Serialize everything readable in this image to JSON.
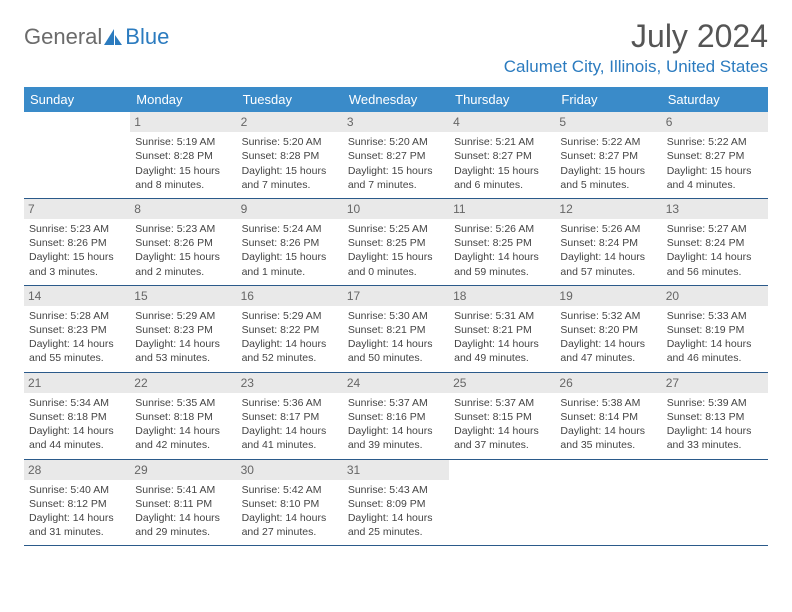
{
  "brand": {
    "part1": "General",
    "part2": "Blue"
  },
  "title": "July 2024",
  "location": "Calumet City, Illinois, United States",
  "weekdays": [
    "Sunday",
    "Monday",
    "Tuesday",
    "Wednesday",
    "Thursday",
    "Friday",
    "Saturday"
  ],
  "colors": {
    "header_bg": "#3a8bc9",
    "accent": "#2b7bbf",
    "daynum_bg": "#e9e9e9",
    "border": "#2b5a8a"
  },
  "first_weekday_index": 1,
  "days": [
    {
      "n": 1,
      "sunrise": "5:19 AM",
      "sunset": "8:28 PM",
      "daylight": "15 hours and 8 minutes."
    },
    {
      "n": 2,
      "sunrise": "5:20 AM",
      "sunset": "8:28 PM",
      "daylight": "15 hours and 7 minutes."
    },
    {
      "n": 3,
      "sunrise": "5:20 AM",
      "sunset": "8:27 PM",
      "daylight": "15 hours and 7 minutes."
    },
    {
      "n": 4,
      "sunrise": "5:21 AM",
      "sunset": "8:27 PM",
      "daylight": "15 hours and 6 minutes."
    },
    {
      "n": 5,
      "sunrise": "5:22 AM",
      "sunset": "8:27 PM",
      "daylight": "15 hours and 5 minutes."
    },
    {
      "n": 6,
      "sunrise": "5:22 AM",
      "sunset": "8:27 PM",
      "daylight": "15 hours and 4 minutes."
    },
    {
      "n": 7,
      "sunrise": "5:23 AM",
      "sunset": "8:26 PM",
      "daylight": "15 hours and 3 minutes."
    },
    {
      "n": 8,
      "sunrise": "5:23 AM",
      "sunset": "8:26 PM",
      "daylight": "15 hours and 2 minutes."
    },
    {
      "n": 9,
      "sunrise": "5:24 AM",
      "sunset": "8:26 PM",
      "daylight": "15 hours and 1 minute."
    },
    {
      "n": 10,
      "sunrise": "5:25 AM",
      "sunset": "8:25 PM",
      "daylight": "15 hours and 0 minutes."
    },
    {
      "n": 11,
      "sunrise": "5:26 AM",
      "sunset": "8:25 PM",
      "daylight": "14 hours and 59 minutes."
    },
    {
      "n": 12,
      "sunrise": "5:26 AM",
      "sunset": "8:24 PM",
      "daylight": "14 hours and 57 minutes."
    },
    {
      "n": 13,
      "sunrise": "5:27 AM",
      "sunset": "8:24 PM",
      "daylight": "14 hours and 56 minutes."
    },
    {
      "n": 14,
      "sunrise": "5:28 AM",
      "sunset": "8:23 PM",
      "daylight": "14 hours and 55 minutes."
    },
    {
      "n": 15,
      "sunrise": "5:29 AM",
      "sunset": "8:23 PM",
      "daylight": "14 hours and 53 minutes."
    },
    {
      "n": 16,
      "sunrise": "5:29 AM",
      "sunset": "8:22 PM",
      "daylight": "14 hours and 52 minutes."
    },
    {
      "n": 17,
      "sunrise": "5:30 AM",
      "sunset": "8:21 PM",
      "daylight": "14 hours and 50 minutes."
    },
    {
      "n": 18,
      "sunrise": "5:31 AM",
      "sunset": "8:21 PM",
      "daylight": "14 hours and 49 minutes."
    },
    {
      "n": 19,
      "sunrise": "5:32 AM",
      "sunset": "8:20 PM",
      "daylight": "14 hours and 47 minutes."
    },
    {
      "n": 20,
      "sunrise": "5:33 AM",
      "sunset": "8:19 PM",
      "daylight": "14 hours and 46 minutes."
    },
    {
      "n": 21,
      "sunrise": "5:34 AM",
      "sunset": "8:18 PM",
      "daylight": "14 hours and 44 minutes."
    },
    {
      "n": 22,
      "sunrise": "5:35 AM",
      "sunset": "8:18 PM",
      "daylight": "14 hours and 42 minutes."
    },
    {
      "n": 23,
      "sunrise": "5:36 AM",
      "sunset": "8:17 PM",
      "daylight": "14 hours and 41 minutes."
    },
    {
      "n": 24,
      "sunrise": "5:37 AM",
      "sunset": "8:16 PM",
      "daylight": "14 hours and 39 minutes."
    },
    {
      "n": 25,
      "sunrise": "5:37 AM",
      "sunset": "8:15 PM",
      "daylight": "14 hours and 37 minutes."
    },
    {
      "n": 26,
      "sunrise": "5:38 AM",
      "sunset": "8:14 PM",
      "daylight": "14 hours and 35 minutes."
    },
    {
      "n": 27,
      "sunrise": "5:39 AM",
      "sunset": "8:13 PM",
      "daylight": "14 hours and 33 minutes."
    },
    {
      "n": 28,
      "sunrise": "5:40 AM",
      "sunset": "8:12 PM",
      "daylight": "14 hours and 31 minutes."
    },
    {
      "n": 29,
      "sunrise": "5:41 AM",
      "sunset": "8:11 PM",
      "daylight": "14 hours and 29 minutes."
    },
    {
      "n": 30,
      "sunrise": "5:42 AM",
      "sunset": "8:10 PM",
      "daylight": "14 hours and 27 minutes."
    },
    {
      "n": 31,
      "sunrise": "5:43 AM",
      "sunset": "8:09 PM",
      "daylight": "14 hours and 25 minutes."
    }
  ],
  "labels": {
    "sunrise_prefix": "Sunrise: ",
    "sunset_prefix": "Sunset: ",
    "daylight_prefix": "Daylight: "
  }
}
